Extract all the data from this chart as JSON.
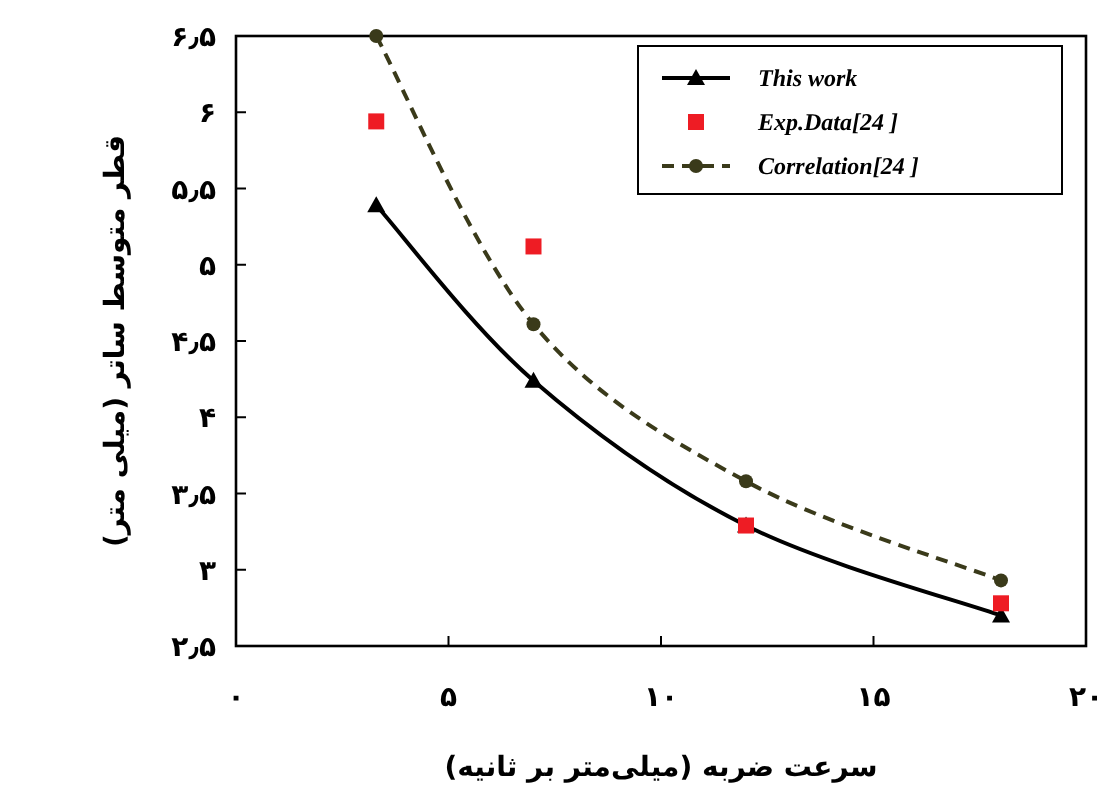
{
  "chart_data": {
    "type": "line",
    "xlabel": "سرعت ضربه (میلی‌متر بر ثانیه)",
    "ylabel": "قطر متوسط ساتر (میلی متر)",
    "xlim": [
      0,
      20
    ],
    "ylim": [
      2.5,
      6.5
    ],
    "xticks": [
      {
        "value": 0,
        "label": "۰"
      },
      {
        "value": 5,
        "label": "۵"
      },
      {
        "value": 10,
        "label": "۱۰"
      },
      {
        "value": 15,
        "label": "۱۵"
      },
      {
        "value": 20,
        "label": "۲۰"
      }
    ],
    "yticks": [
      {
        "value": 2.5,
        "label": "۲٫۵"
      },
      {
        "value": 3,
        "label": "۳"
      },
      {
        "value": 3.5,
        "label": "۳٫۵"
      },
      {
        "value": 4,
        "label": "۴"
      },
      {
        "value": 4.5,
        "label": "۴٫۵"
      },
      {
        "value": 5,
        "label": "۵"
      },
      {
        "value": 5.5,
        "label": "۵٫۵"
      },
      {
        "value": 6,
        "label": "۶"
      },
      {
        "value": 6.5,
        "label": "۶٫۵"
      }
    ],
    "legend": "top right",
    "series": [
      {
        "name": "This work",
        "color": "#000000",
        "marker": "triangle",
        "line_style": "solid",
        "x": [
          3.3,
          7.0,
          12.0,
          18.0
        ],
        "values": [
          5.39,
          4.24,
          3.29,
          2.7
        ]
      },
      {
        "name": "Exp.Data[24 ]",
        "type": "scatter",
        "color": "#ee1c24",
        "marker": "square",
        "x": [
          3.3,
          7.0,
          12.0,
          18.0
        ],
        "values": [
          5.94,
          5.12,
          3.29,
          2.78
        ]
      },
      {
        "name": "Correlation[24 ]",
        "color": "#3a3a1a",
        "marker": "circle",
        "line_style": "dashed",
        "x": [
          3.3,
          7.0,
          12.0,
          18.0
        ],
        "values": [
          6.5,
          4.61,
          3.58,
          2.93
        ]
      }
    ]
  }
}
